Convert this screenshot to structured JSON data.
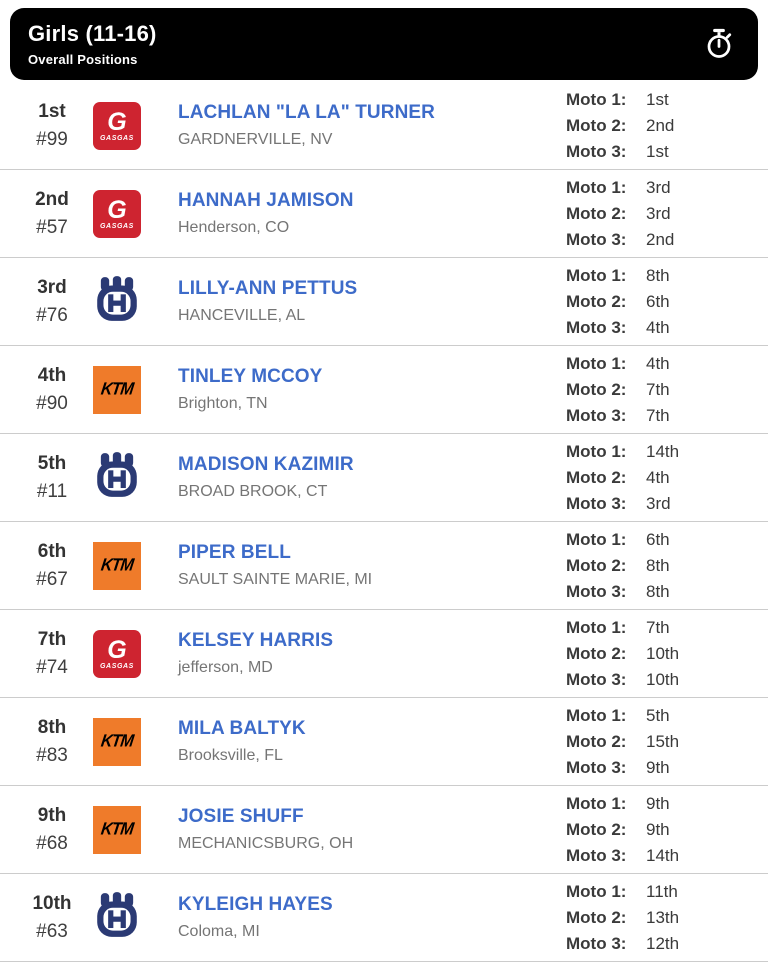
{
  "header": {
    "title": "Girls (11-16)",
    "subtitle": "Overall Positions",
    "icon": "stopwatch-icon"
  },
  "moto_labels": [
    "Moto 1:",
    "Moto 2:",
    "Moto 3:"
  ],
  "colors": {
    "header_bg": "#000000",
    "header_text": "#ffffff",
    "rider_name_blue": "#3d6bc9",
    "position_text": "#333333",
    "hometown_text": "#757575",
    "divider": "#cccccc",
    "gasgas_red": "#ce2430",
    "ktm_orange": "#ef7b2a",
    "husqvarna_navy": "#2b3a74"
  },
  "brands": {
    "gasgas": {
      "g_letter": "G",
      "wordmark": "GASGAS"
    },
    "ktm": {
      "wordmark": "KTM"
    },
    "husqvarna": {
      "letter": "H"
    }
  },
  "riders": [
    {
      "position": "1st",
      "number": "#99",
      "brand": "gasgas",
      "name": "LACHLAN \"LA LA\" TURNER",
      "hometown": "GARDNERVILLE, NV",
      "motos": [
        "1st",
        "2nd",
        "1st"
      ]
    },
    {
      "position": "2nd",
      "number": "#57",
      "brand": "gasgas",
      "name": "HANNAH JAMISON",
      "hometown": "Henderson, CO",
      "motos": [
        "3rd",
        "3rd",
        "2nd"
      ]
    },
    {
      "position": "3rd",
      "number": "#76",
      "brand": "husqvarna",
      "name": "LILLY-ANN PETTUS",
      "hometown": "HANCEVILLE, AL",
      "motos": [
        "8th",
        "6th",
        "4th"
      ]
    },
    {
      "position": "4th",
      "number": "#90",
      "brand": "ktm",
      "name": "TINLEY MCCOY",
      "hometown": "Brighton, TN",
      "motos": [
        "4th",
        "7th",
        "7th"
      ]
    },
    {
      "position": "5th",
      "number": "#11",
      "brand": "husqvarna",
      "name": "MADISON KAZIMIR",
      "hometown": "BROAD BROOK, CT",
      "motos": [
        "14th",
        "4th",
        "3rd"
      ]
    },
    {
      "position": "6th",
      "number": "#67",
      "brand": "ktm",
      "name": "PIPER BELL",
      "hometown": "SAULT SAINTE MARIE, MI",
      "motos": [
        "6th",
        "8th",
        "8th"
      ]
    },
    {
      "position": "7th",
      "number": "#74",
      "brand": "gasgas",
      "name": "KELSEY HARRIS",
      "hometown": "jefferson, MD",
      "motos": [
        "7th",
        "10th",
        "10th"
      ]
    },
    {
      "position": "8th",
      "number": "#83",
      "brand": "ktm",
      "name": "MILA BALTYK",
      "hometown": "Brooksville, FL",
      "motos": [
        "5th",
        "15th",
        "9th"
      ]
    },
    {
      "position": "9th",
      "number": "#68",
      "brand": "ktm",
      "name": "JOSIE SHUFF",
      "hometown": "MECHANICSBURG, OH",
      "motos": [
        "9th",
        "9th",
        "14th"
      ]
    },
    {
      "position": "10th",
      "number": "#63",
      "brand": "husqvarna",
      "name": "KYLEIGH HAYES",
      "hometown": "Coloma, MI",
      "motos": [
        "11th",
        "13th",
        "12th"
      ]
    }
  ]
}
